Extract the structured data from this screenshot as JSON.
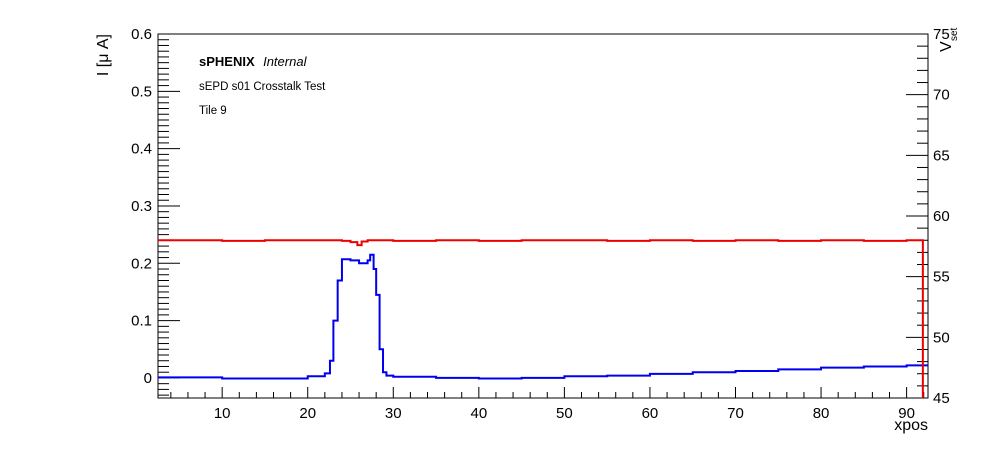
{
  "chart_data": {
    "type": "line",
    "brand": "sPHENIX",
    "brand_qualifier": "Internal",
    "annotations": [
      "sEPD s01 Crosstalk Test",
      "Tile 9"
    ],
    "xlabel": "xpos",
    "ylabel": "I [μ A]",
    "y2label_main": "V",
    "y2label_sub": "set",
    "xlim": [
      2.5,
      92.5
    ],
    "ylim": [
      -0.035,
      0.6
    ],
    "y2lim": [
      45,
      75
    ],
    "xticks": [
      10,
      20,
      30,
      40,
      50,
      60,
      70,
      80,
      90
    ],
    "yticks": [
      0,
      0.1,
      0.2,
      0.3,
      0.4,
      0.5,
      0.6
    ],
    "y2ticks": [
      45,
      50,
      55,
      60,
      65,
      70,
      75
    ],
    "xtick_labels": [
      "10",
      "20",
      "30",
      "40",
      "50",
      "60",
      "70",
      "80",
      "90"
    ],
    "ytick_labels": [
      "0",
      "0.1",
      "0.2",
      "0.3",
      "0.4",
      "0.5",
      "0.6"
    ],
    "y2tick_labels": [
      "45",
      "50",
      "55",
      "60",
      "65",
      "70",
      "75"
    ],
    "series": [
      {
        "axis": "left",
        "color": "#0000ee",
        "x": [
          2.5,
          10,
          15,
          20,
          22,
          22.6,
          23,
          23.5,
          24,
          25,
          26,
          27,
          27.3,
          27.7,
          28,
          28.4,
          28.8,
          29.2,
          30,
          35,
          40,
          45,
          50,
          55,
          60,
          65,
          70,
          75,
          80,
          85,
          90,
          92.5
        ],
        "values": [
          0.001,
          -0.001,
          -0.001,
          0.003,
          0.008,
          0.03,
          0.1,
          0.17,
          0.207,
          0.205,
          0.2,
          0.205,
          0.215,
          0.19,
          0.145,
          0.05,
          0.01,
          0.004,
          0.002,
          0.0,
          -0.001,
          0.0,
          0.003,
          0.004,
          0.007,
          0.01,
          0.012,
          0.015,
          0.018,
          0.02,
          0.022,
          0.022
        ]
      },
      {
        "axis": "right",
        "color": "#ee0000",
        "x": [
          2.5,
          5,
          10,
          15,
          20,
          24,
          25,
          25.8,
          26.3,
          27,
          30,
          35,
          40,
          45,
          50,
          55,
          60,
          65,
          70,
          75,
          80,
          85,
          90,
          91.9
        ],
        "values": [
          58.0,
          58.0,
          57.95,
          58.0,
          58.0,
          57.95,
          57.85,
          57.6,
          57.9,
          58.0,
          57.95,
          58.0,
          57.95,
          58.0,
          58.0,
          57.95,
          58.0,
          57.95,
          58.0,
          57.95,
          58.0,
          57.95,
          58.0,
          58.0
        ]
      }
    ]
  }
}
